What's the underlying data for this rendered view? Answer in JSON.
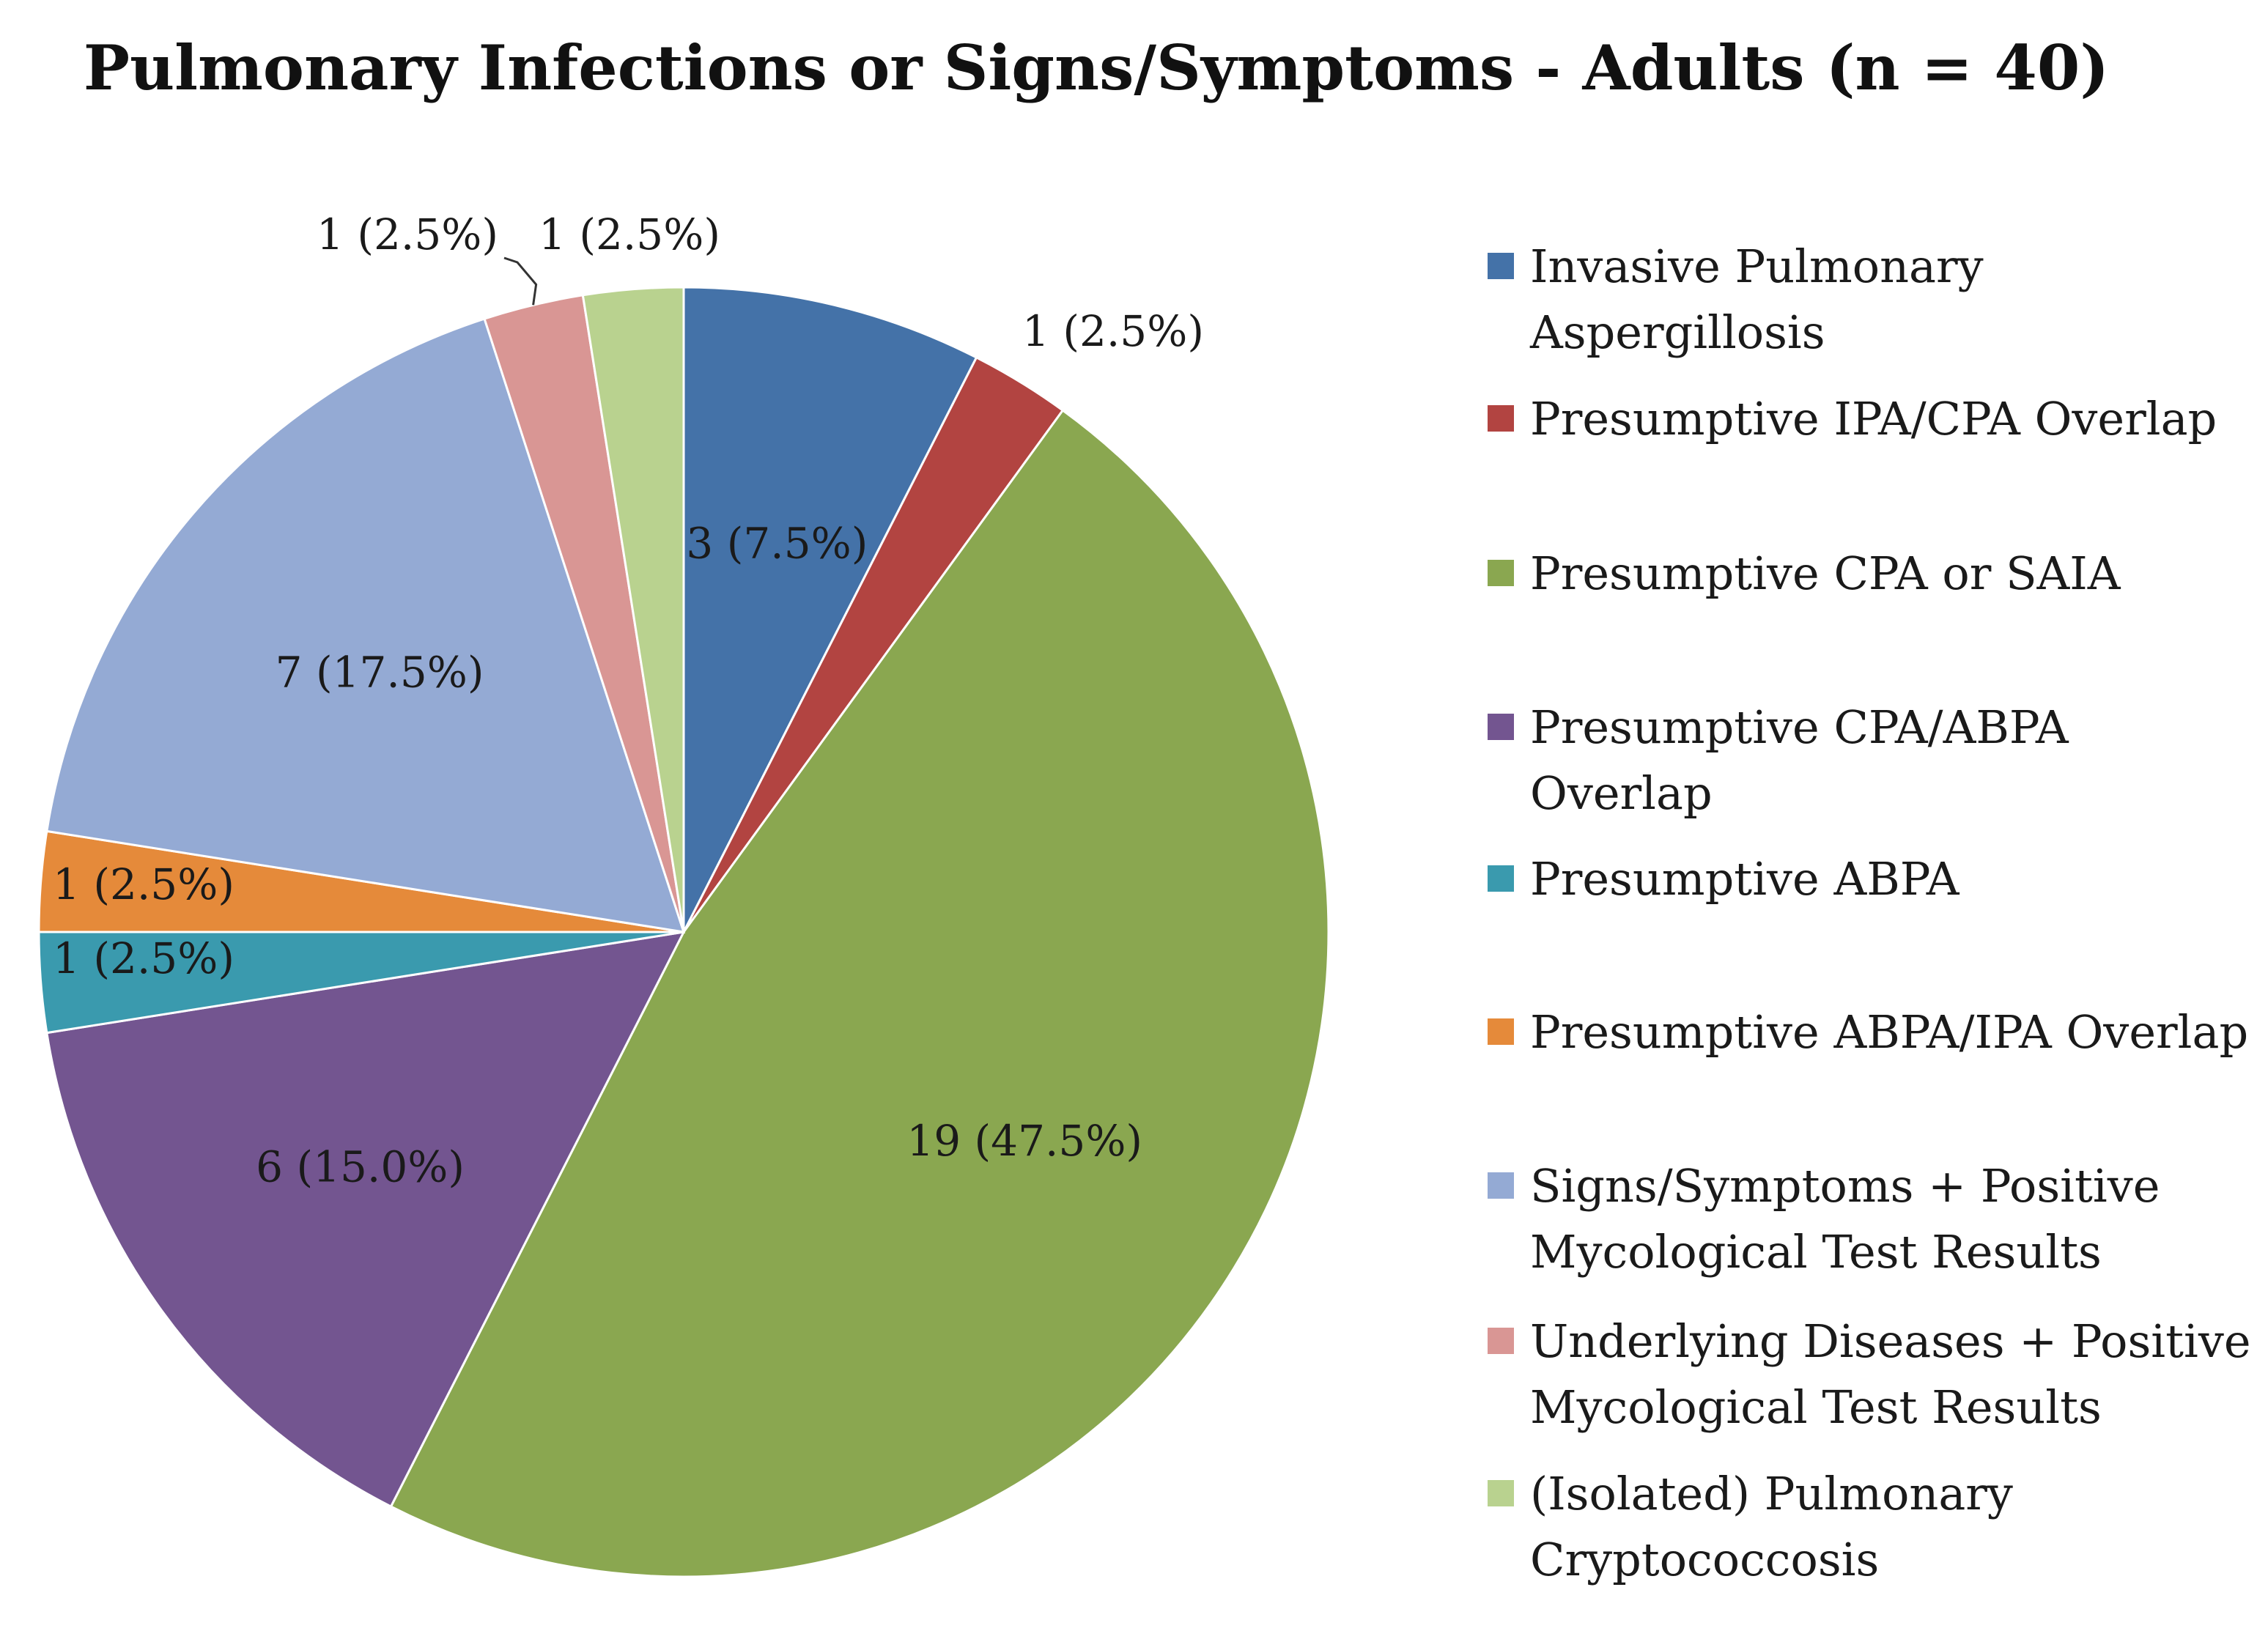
{
  "chart_data": {
    "type": "pie",
    "title": "Pulmonary Infections or Signs/Symptoms - Adults (n = 40)",
    "total": 40,
    "start_angle_deg": 0,
    "direction": "clockwise",
    "legend_position": "right",
    "slices": [
      {
        "name": "Invasive Pulmonary Aspergillosis",
        "legend_lines": [
          "Invasive Pulmonary",
          "Aspergillosis"
        ],
        "value": 3,
        "percent": 7.5,
        "label": "3 (7.5%)",
        "color": "#4472A8"
      },
      {
        "name": "Presumptive IPA/CPA Overlap",
        "legend_lines": [
          "Presumptive IPA/CPA Overlap"
        ],
        "value": 1,
        "percent": 2.5,
        "label": "1 (2.5%)",
        "color": "#B24441"
      },
      {
        "name": "Presumptive CPA or SAIA",
        "legend_lines": [
          "Presumptive CPA or SAIA"
        ],
        "value": 19,
        "percent": 47.5,
        "label": "19 (47.5%)",
        "color": "#8AA750"
      },
      {
        "name": "Presumptive CPA/ABPA Overlap",
        "legend_lines": [
          "Presumptive CPA/ABPA",
          "Overlap"
        ],
        "value": 6,
        "percent": 15.0,
        "label": "6 (15.0%)",
        "color": "#735590"
      },
      {
        "name": "Presumptive ABPA",
        "legend_lines": [
          "Presumptive ABPA"
        ],
        "value": 1,
        "percent": 2.5,
        "label": "1 (2.5%)",
        "color": "#3A9AAE"
      },
      {
        "name": "Presumptive ABPA/IPA Overlap",
        "legend_lines": [
          "Presumptive ABPA/IPA Overlap"
        ],
        "value": 1,
        "percent": 2.5,
        "label": "1 (2.5%)",
        "color": "#E58A3A"
      },
      {
        "name": "Signs/Symptoms + Positive Mycological Test Results",
        "legend_lines": [
          "Signs/Symptoms + Positive",
          "Mycological Test Results"
        ],
        "value": 7,
        "percent": 17.5,
        "label": "7 (17.5%)",
        "color": "#94AAD4"
      },
      {
        "name": "Underlying Diseases + Positive Mycological Test Results",
        "legend_lines": [
          "Underlying Diseases + Positive",
          "Mycological Test Results"
        ],
        "value": 1,
        "percent": 2.5,
        "label": "1 (2.5%)",
        "color": "#D99694"
      },
      {
        "name": "(Isolated) Pulmonary Cryptococcosis",
        "legend_lines": [
          "(Isolated) Pulmonary",
          "Cryptococcosis"
        ],
        "value": 1,
        "percent": 2.5,
        "label": "1 (2.5%)",
        "color": "#B9D28F"
      }
    ]
  }
}
